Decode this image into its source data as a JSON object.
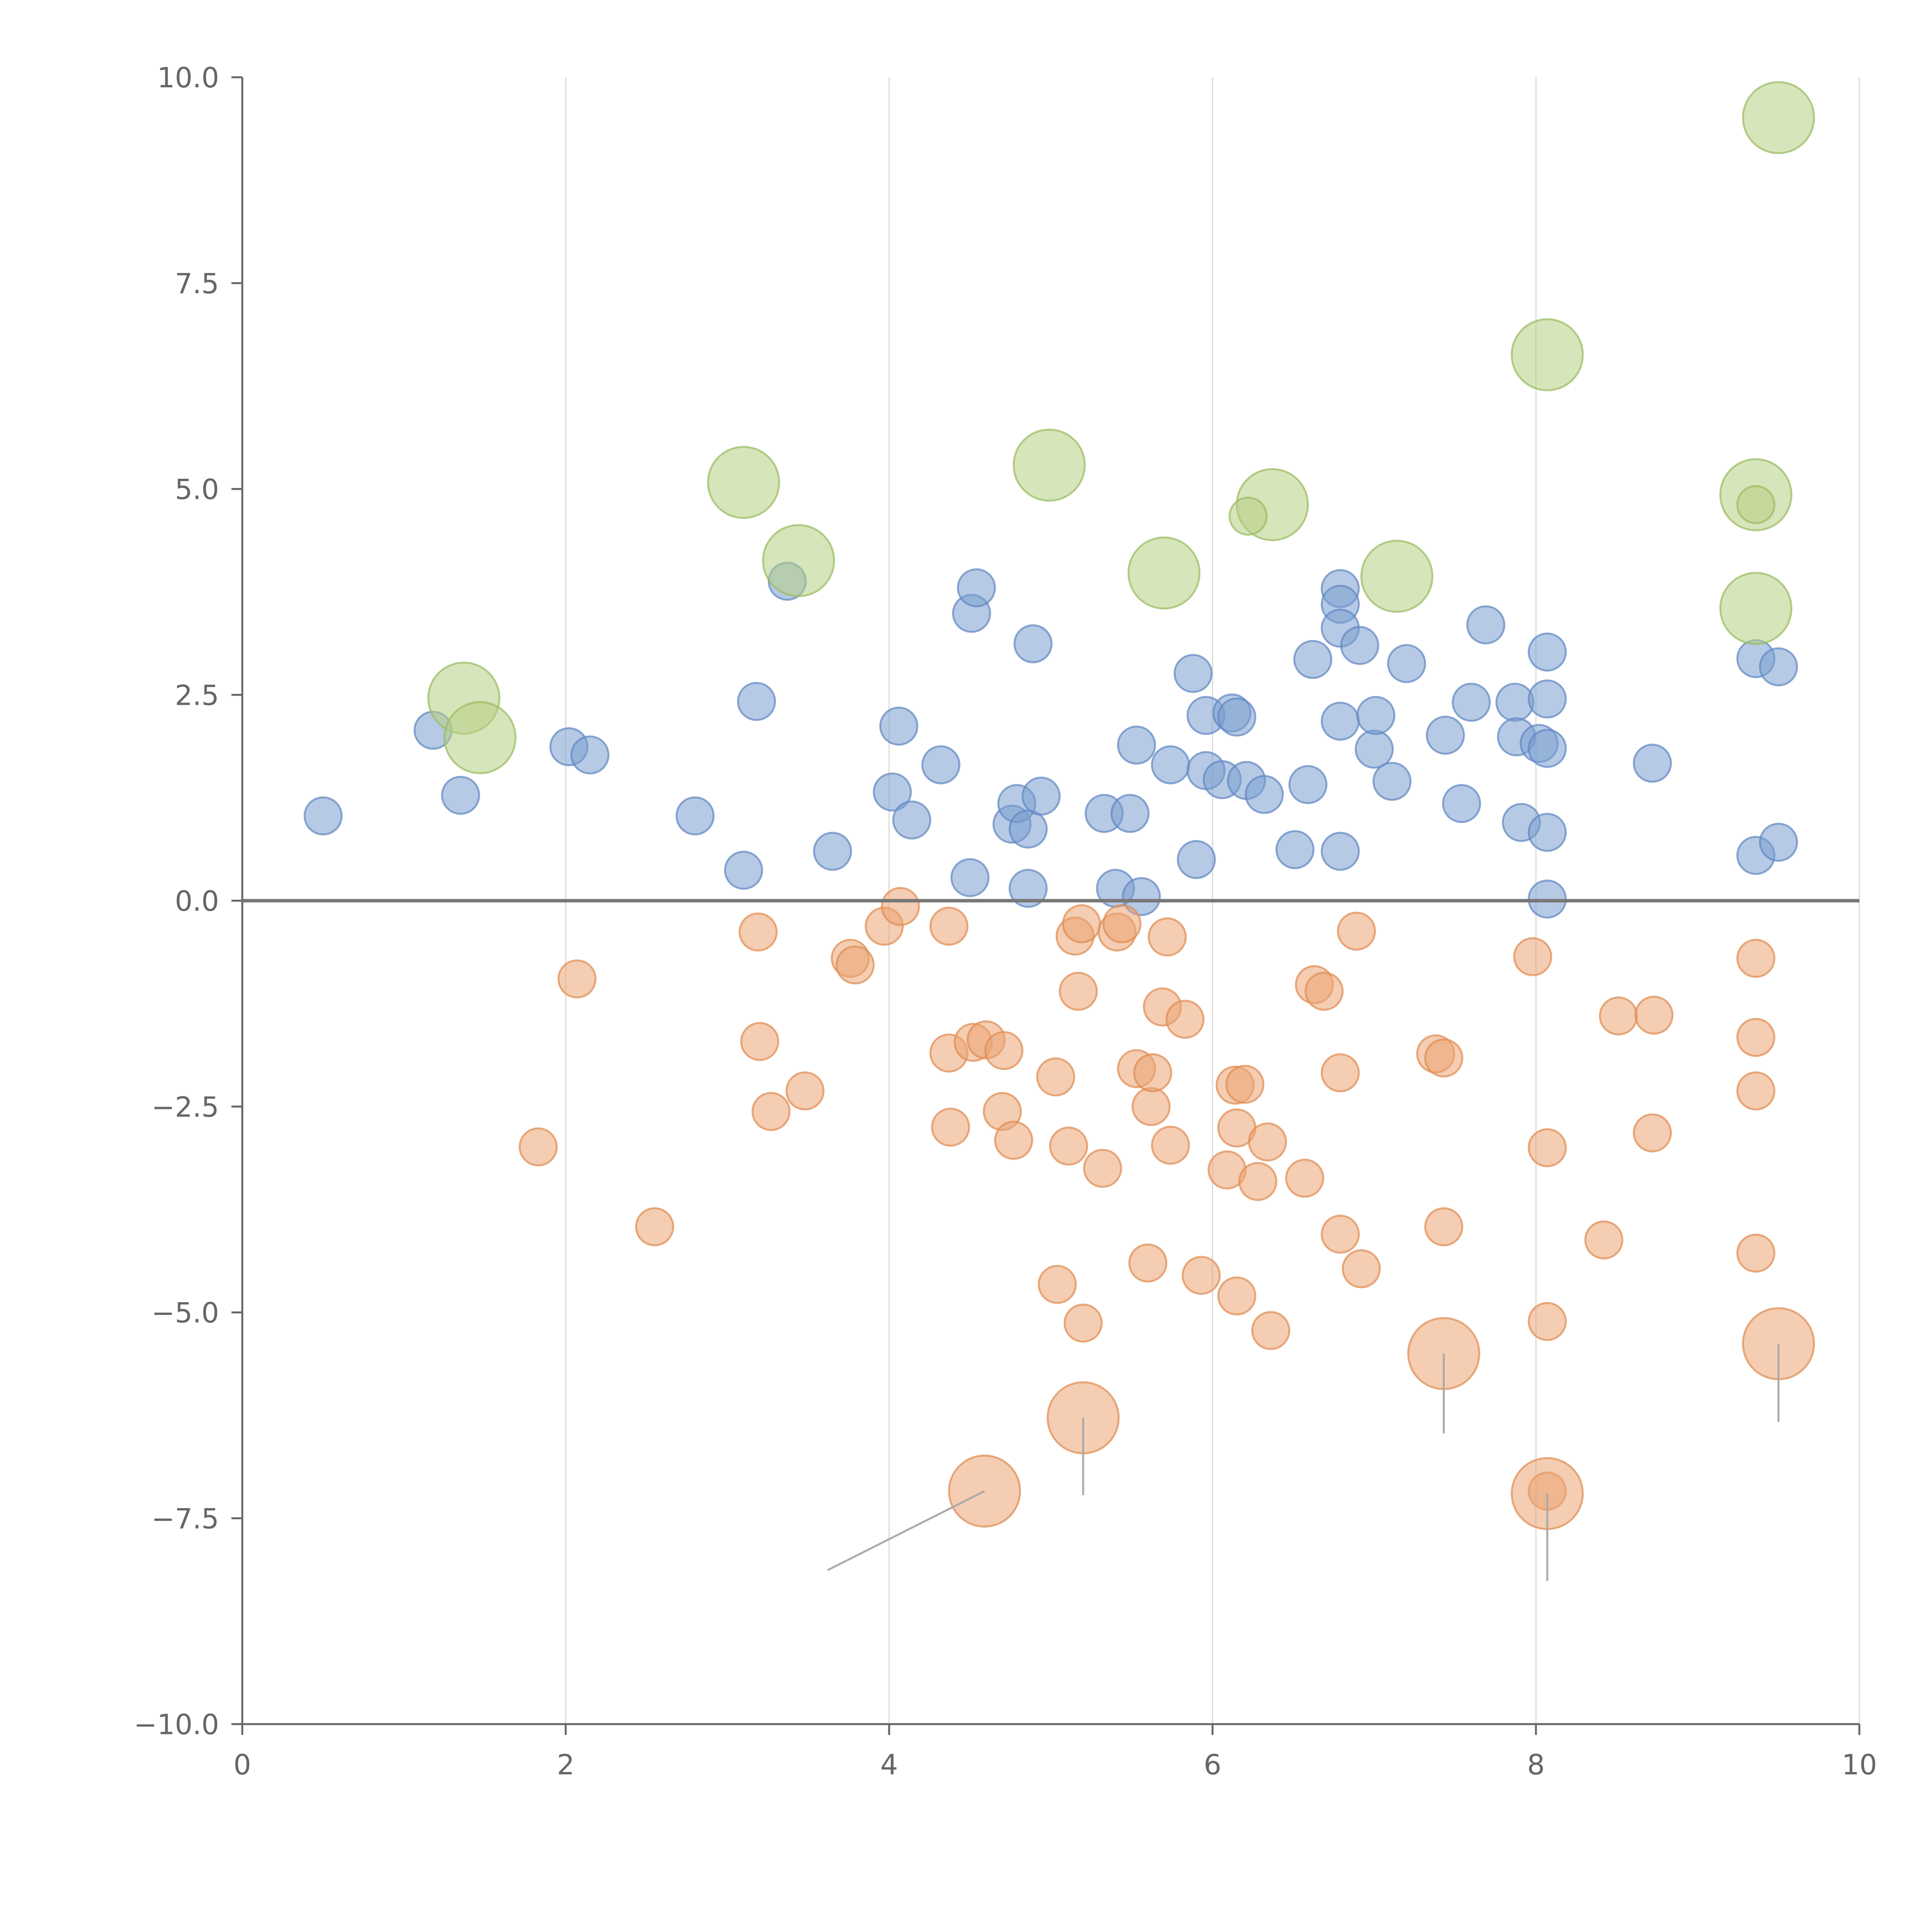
{
  "chart_data": {
    "type": "scatter",
    "title": "",
    "xlabel": "",
    "ylabel": "",
    "xlim": [
      0,
      10
    ],
    "ylim": [
      -10,
      10
    ],
    "x_ticks": [
      0,
      2,
      4,
      6,
      8,
      10
    ],
    "x_tick_labels": [
      "0",
      "2",
      "4",
      "6",
      "8",
      "10"
    ],
    "y_ticks": [
      10,
      7.5,
      5,
      2.5,
      0,
      -2.5,
      -5,
      -7.5,
      -10
    ],
    "y_tick_labels": [
      "10.0",
      "7.5",
      "5.0",
      "2.5",
      "0.0",
      "−2.5",
      "−5.0",
      "−7.5",
      "−10.0"
    ],
    "grid": "vertical",
    "reference_line_y": 0,
    "colors": {
      "blue": "#7a9fd0",
      "blue_edge": "#5f86c2",
      "orange": "#eba472",
      "orange_edge": "#df8a4e",
      "green": "#b6cf84",
      "green_edge": "#98ba5e",
      "axis": "#666666",
      "grid": "#d9d9d9",
      "zero_line": "#777777",
      "callout": "#aaaaaa"
    },
    "series": [
      {
        "name": "positive",
        "color": "blue",
        "size": "small",
        "points": [
          [
            0.5,
            1.03
          ],
          [
            1.18,
            2.07
          ],
          [
            1.35,
            1.28
          ],
          [
            2.02,
            1.87
          ],
          [
            2.15,
            1.77
          ],
          [
            2.8,
            1.03
          ],
          [
            3.1,
            0.37
          ],
          [
            3.18,
            2.42
          ],
          [
            3.37,
            3.88
          ],
          [
            3.65,
            0.6
          ],
          [
            4.02,
            1.32
          ],
          [
            4.06,
            2.12
          ],
          [
            4.14,
            0.98
          ],
          [
            4.32,
            1.65
          ],
          [
            4.5,
            0.28
          ],
          [
            4.51,
            3.49
          ],
          [
            4.54,
            3.8
          ],
          [
            4.76,
            0.93
          ],
          [
            4.79,
            1.18
          ],
          [
            4.86,
            0.87
          ],
          [
            4.86,
            0.15
          ],
          [
            4.89,
            3.12
          ],
          [
            4.94,
            1.27
          ],
          [
            5.33,
            1.06
          ],
          [
            5.4,
            0.15
          ],
          [
            5.49,
            1.06
          ],
          [
            5.53,
            1.89
          ],
          [
            5.56,
            0.05
          ],
          [
            5.74,
            1.65
          ],
          [
            5.88,
            2.76
          ],
          [
            5.9,
            0.5
          ],
          [
            5.96,
            2.25
          ],
          [
            5.96,
            1.58
          ],
          [
            6.06,
            1.47
          ],
          [
            6.12,
            2.28
          ],
          [
            6.15,
            2.23
          ],
          [
            6.21,
            1.46
          ],
          [
            6.32,
            1.29
          ],
          [
            6.51,
            0.62
          ],
          [
            6.59,
            1.41
          ],
          [
            6.62,
            2.93
          ],
          [
            6.79,
            3.79
          ],
          [
            6.79,
            3.6
          ],
          [
            6.79,
            3.31
          ],
          [
            6.79,
            2.18
          ],
          [
            6.79,
            0.6
          ],
          [
            6.91,
            3.1
          ],
          [
            7.0,
            1.84
          ],
          [
            7.01,
            2.25
          ],
          [
            7.11,
            1.45
          ],
          [
            7.2,
            2.88
          ],
          [
            7.44,
            2.01
          ],
          [
            7.54,
            1.18
          ],
          [
            7.6,
            2.41
          ],
          [
            7.69,
            3.35
          ],
          [
            7.87,
            2.41
          ],
          [
            7.88,
            1.99
          ],
          [
            7.91,
            0.95
          ],
          [
            8.02,
            1.91
          ],
          [
            8.07,
            3.02
          ],
          [
            8.07,
            2.45
          ],
          [
            8.07,
            1.85
          ],
          [
            8.07,
            0.83
          ],
          [
            8.07,
            0.02
          ],
          [
            8.72,
            1.67
          ],
          [
            9.36,
            2.94
          ],
          [
            9.36,
            0.55
          ],
          [
            9.5,
            2.84
          ],
          [
            9.5,
            0.71
          ]
        ]
      },
      {
        "name": "negative",
        "color": "orange",
        "size": "small",
        "points": [
          [
            1.83,
            -2.99
          ],
          [
            2.07,
            -0.95
          ],
          [
            2.55,
            -3.96
          ],
          [
            3.19,
            -0.38
          ],
          [
            3.2,
            -1.71
          ],
          [
            3.27,
            -2.56
          ],
          [
            3.48,
            -2.31
          ],
          [
            3.76,
            -0.7
          ],
          [
            3.79,
            -0.78
          ],
          [
            3.97,
            -0.31
          ],
          [
            4.07,
            -0.07
          ],
          [
            4.37,
            -0.31
          ],
          [
            4.37,
            -1.85
          ],
          [
            4.38,
            -2.75
          ],
          [
            4.52,
            -1.72
          ],
          [
            4.6,
            -1.69
          ],
          [
            4.7,
            -2.56
          ],
          [
            4.71,
            -1.82
          ],
          [
            4.77,
            -2.91
          ],
          [
            5.03,
            -2.14
          ],
          [
            5.04,
            -4.66
          ],
          [
            5.11,
            -2.98
          ],
          [
            5.15,
            -0.43
          ],
          [
            5.17,
            -1.1
          ],
          [
            5.19,
            -0.28
          ],
          [
            5.2,
            -5.13
          ],
          [
            5.32,
            -3.25
          ],
          [
            5.41,
            -0.38
          ],
          [
            5.44,
            -0.28
          ],
          [
            5.53,
            -2.04
          ],
          [
            5.6,
            -4.4
          ],
          [
            5.62,
            -2.5
          ],
          [
            5.63,
            -2.09
          ],
          [
            5.69,
            -1.29
          ],
          [
            5.72,
            -0.44
          ],
          [
            5.74,
            -2.97
          ],
          [
            5.83,
            -1.44
          ],
          [
            5.93,
            -4.55
          ],
          [
            6.09,
            -3.27
          ],
          [
            6.14,
            -2.24
          ],
          [
            6.15,
            -2.76
          ],
          [
            6.15,
            -4.8
          ],
          [
            6.2,
            -2.23
          ],
          [
            6.28,
            -3.41
          ],
          [
            6.34,
            -2.93
          ],
          [
            6.36,
            -5.22
          ],
          [
            6.57,
            -3.37
          ],
          [
            6.63,
            -1.02
          ],
          [
            6.69,
            -1.1
          ],
          [
            6.79,
            -2.09
          ],
          [
            6.79,
            -4.05
          ],
          [
            6.89,
            -0.37
          ],
          [
            6.92,
            -4.47
          ],
          [
            7.38,
            -1.86
          ],
          [
            7.43,
            -1.91
          ],
          [
            7.43,
            -3.96
          ],
          [
            7.98,
            -0.68
          ],
          [
            8.07,
            -3.0
          ],
          [
            8.07,
            -5.11
          ],
          [
            8.07,
            -7.17
          ],
          [
            8.42,
            -4.12
          ],
          [
            8.51,
            -1.4
          ],
          [
            8.72,
            -2.82
          ],
          [
            8.73,
            -1.39
          ],
          [
            9.36,
            -0.7
          ],
          [
            9.36,
            -1.66
          ],
          [
            9.36,
            -2.31
          ],
          [
            9.36,
            -4.28
          ]
        ]
      },
      {
        "name": "positive-highlight",
        "color": "green",
        "size": "large",
        "points": [
          [
            1.37,
            2.46
          ],
          [
            1.47,
            1.98
          ],
          [
            3.1,
            5.08
          ],
          [
            3.44,
            4.13
          ],
          [
            4.99,
            5.29
          ],
          [
            5.7,
            3.98
          ],
          [
            6.37,
            4.81
          ],
          [
            7.14,
            3.94
          ],
          [
            8.07,
            6.63
          ],
          [
            9.36,
            4.93
          ],
          [
            9.36,
            3.55
          ],
          [
            9.5,
            9.51
          ]
        ]
      },
      {
        "name": "positive-highlight-small",
        "color": "green",
        "size": "small",
        "points": [
          [
            6.22,
            4.67
          ],
          [
            9.36,
            4.81
          ]
        ]
      },
      {
        "name": "negative-highlight",
        "color": "orange",
        "size": "large",
        "points": [
          [
            4.59,
            -7.17
          ],
          [
            5.2,
            -6.28
          ],
          [
            7.43,
            -5.5
          ],
          [
            8.07,
            -7.2
          ],
          [
            9.5,
            -5.38
          ]
        ]
      }
    ],
    "connectors": [
      {
        "from": [
          4.59,
          -7.17
        ],
        "to": [
          3.62,
          -8.13
        ]
      },
      {
        "from": [
          5.2,
          -6.28
        ],
        "to": [
          5.2,
          -7.22
        ]
      },
      {
        "from": [
          7.43,
          -5.5
        ],
        "to": [
          7.43,
          -6.47
        ]
      },
      {
        "from": [
          8.07,
          -7.2
        ],
        "to": [
          8.07,
          -8.26
        ]
      },
      {
        "from": [
          9.5,
          -5.38
        ],
        "to": [
          9.5,
          -6.33
        ]
      }
    ]
  }
}
